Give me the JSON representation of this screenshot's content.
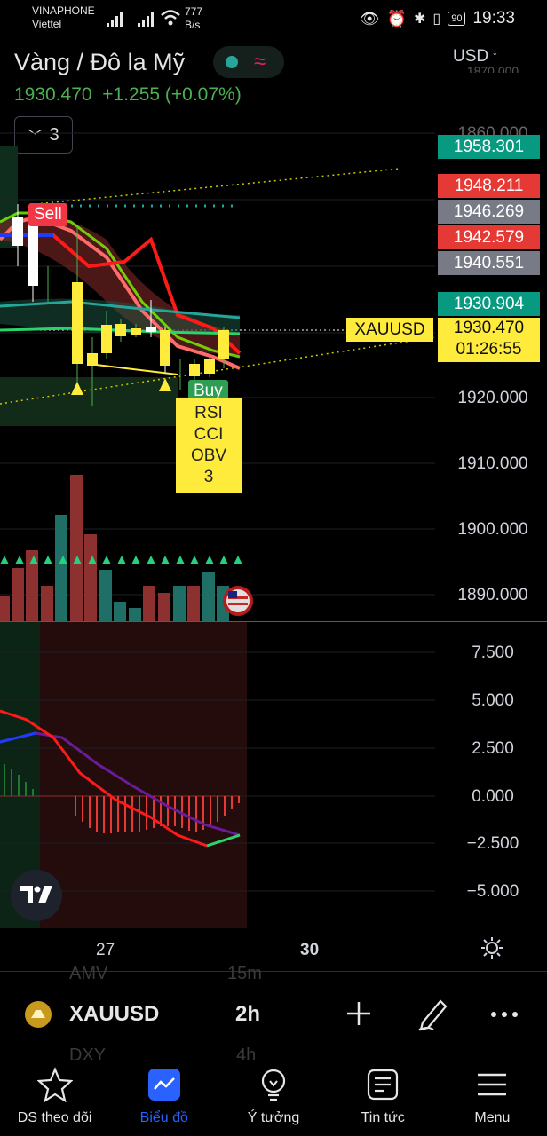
{
  "status": {
    "carrier1": "VINAPHONE",
    "carrier2": "Viettel",
    "speed": "777",
    "speed_unit": "B/s",
    "battery": "90",
    "time": "19:33"
  },
  "header": {
    "title": "Vàng / Đô la Mỹ",
    "price": "1930.470",
    "change": "+1.255 (+0.07%)",
    "currency": "USD",
    "indicator_count": "3"
  },
  "price_axis": {
    "top_cut": "1870.000",
    "cut2": "1860.000",
    "ticks": [
      "1920.000",
      "1910.000",
      "1900.000",
      "1890.000"
    ],
    "tags": [
      {
        "value": "1958.301",
        "color": "#089981"
      },
      {
        "value": "1948.211",
        "color": "#e53935"
      },
      {
        "value": "1946.269",
        "color": "#787b86"
      },
      {
        "value": "1942.579",
        "color": "#e53935"
      },
      {
        "value": "1940.551",
        "color": "#787b86"
      },
      {
        "value": "1930.904",
        "color": "#089981"
      }
    ],
    "current_symbol": "XAUUSD",
    "current_price": "1930.470",
    "countdown": "01:26:55"
  },
  "chart_labels": {
    "sell": "Sell",
    "buy": "Buy",
    "indicator_box": [
      "RSI",
      "CCI",
      "OBV",
      "3"
    ]
  },
  "macd_axis": [
    "7.500",
    "5.000",
    "2.500",
    "0.000",
    "−2.500",
    "−5.000"
  ],
  "time_axis": [
    "27",
    "30"
  ],
  "toolbar": {
    "symbol": "XAUUSD",
    "interval": "2h",
    "ghost_above_left": "AMV",
    "ghost_above_right": "15m",
    "ghost_below_left": "DXY",
    "ghost_below_right": "4h"
  },
  "nav": [
    {
      "label": "DS theo dõi",
      "icon": "star-icon"
    },
    {
      "label": "Biểu đồ",
      "icon": "chart-icon"
    },
    {
      "label": "Ý tưởng",
      "icon": "lightbulb-icon"
    },
    {
      "label": "Tin tức",
      "icon": "news-icon"
    },
    {
      "label": "Menu",
      "icon": "menu-icon"
    }
  ]
}
